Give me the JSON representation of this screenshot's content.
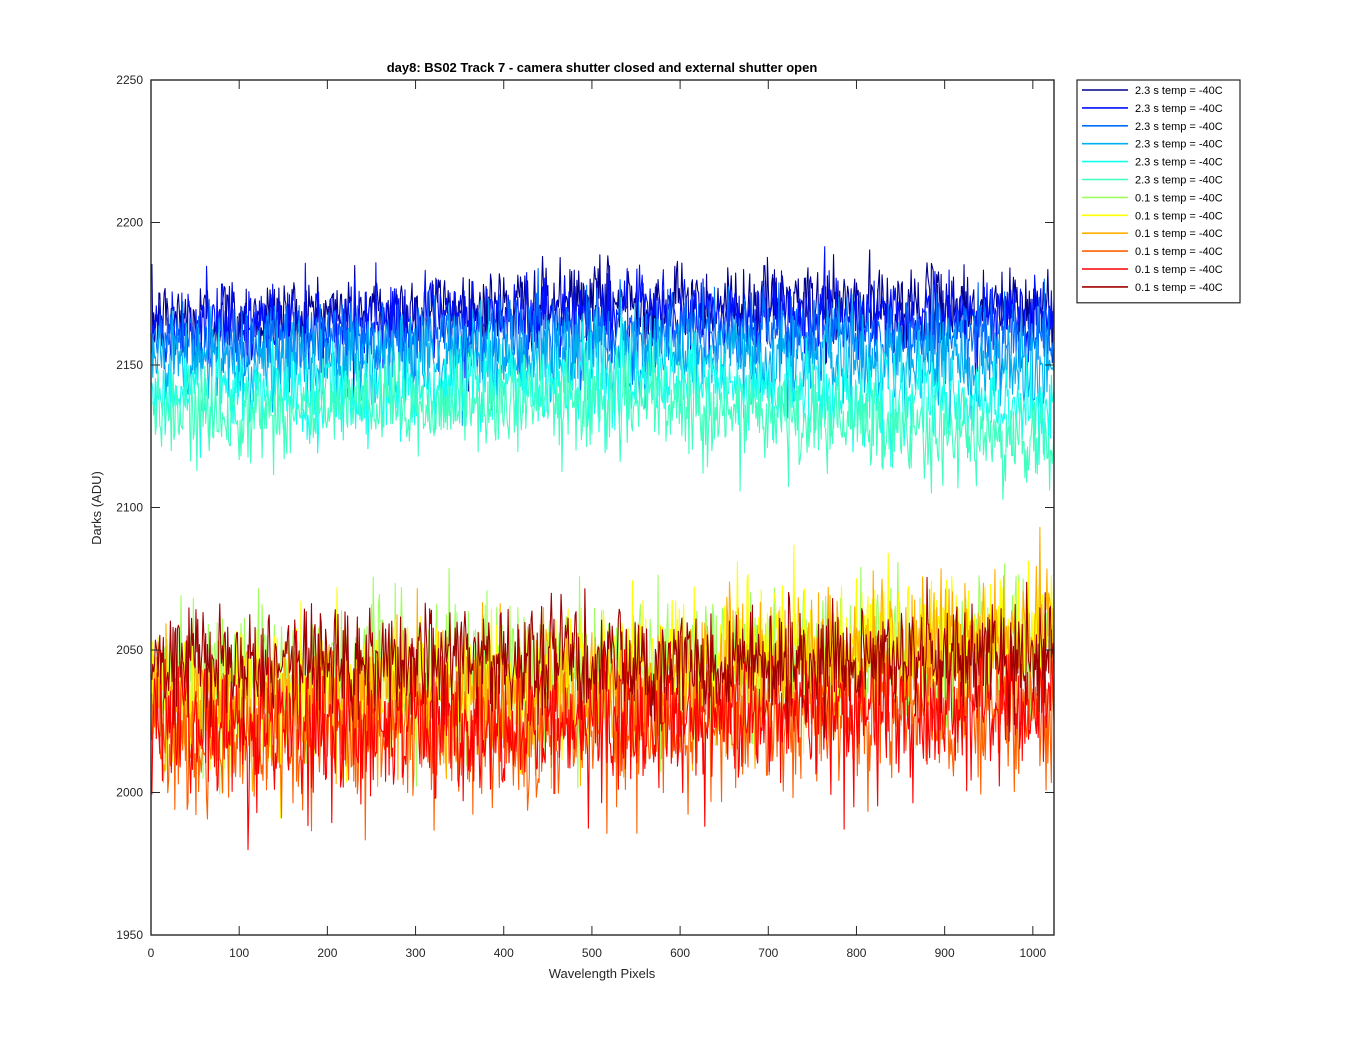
{
  "chart_data": {
    "type": "line",
    "title": "day8: BS02  Track 7 - camera shutter closed and external shutter open",
    "xlabel": "Wavelength Pixels",
    "ylabel": "Darks (ADU)",
    "xlim": [
      0,
      1024
    ],
    "ylim": [
      1950,
      2250
    ],
    "xticks": [
      0,
      100,
      200,
      300,
      400,
      500,
      600,
      700,
      800,
      900,
      1000
    ],
    "yticks": [
      1950,
      2000,
      2050,
      2100,
      2150,
      2200,
      2250
    ],
    "grid": false,
    "legend_position": "outside-top-right",
    "x_count": 1024,
    "series": [
      {
        "name": "2.3 s temp = -40C",
        "color": "#00008f",
        "center_start": 2166,
        "center_mid": 2172,
        "center_end": 2170,
        "spread": 7,
        "peak": 2212,
        "trough": 2140
      },
      {
        "name": "2.3 s temp = -40C",
        "color": "#0010ff",
        "center_start": 2163,
        "center_mid": 2168,
        "center_end": 2167,
        "spread": 7,
        "peak": 2198,
        "trough": 2136
      },
      {
        "name": "2.3 s temp = -40C",
        "color": "#0070ff",
        "center_start": 2158,
        "center_mid": 2162,
        "center_end": 2160,
        "spread": 7,
        "peak": 2190,
        "trough": 2128
      },
      {
        "name": "2.3 s temp = -40C",
        "color": "#00afef",
        "center_start": 2150,
        "center_mid": 2154,
        "center_end": 2150,
        "spread": 8,
        "peak": 2182,
        "trough": 2112
      },
      {
        "name": "2.3 s temp = -40C",
        "color": "#10ffef",
        "center_start": 2138,
        "center_mid": 2145,
        "center_end": 2135,
        "spread": 8,
        "peak": 2175,
        "trough": 2096
      },
      {
        "name": "2.3 s temp = -40C",
        "color": "#40ffbf",
        "center_start": 2132,
        "center_mid": 2138,
        "center_end": 2122,
        "spread": 8,
        "peak": 2165,
        "trough": 2090
      },
      {
        "name": "0.1 s temp = -40C",
        "color": "#a0ff60",
        "center_start": 2040,
        "center_mid": 2044,
        "center_end": 2052,
        "spread": 12,
        "peak": 2086,
        "trough": 1995
      },
      {
        "name": "0.1 s temp = -40C",
        "color": "#ffff00",
        "center_start": 2032,
        "center_mid": 2040,
        "center_end": 2058,
        "spread": 12,
        "peak": 2093,
        "trough": 1985
      },
      {
        "name": "0.1 s temp = -40C",
        "color": "#ffaf00",
        "center_start": 2030,
        "center_mid": 2038,
        "center_end": 2055,
        "spread": 12,
        "peak": 2093,
        "trough": 1980
      },
      {
        "name": "0.1 s temp = -40C",
        "color": "#ff6000",
        "center_start": 2018,
        "center_mid": 2024,
        "center_end": 2030,
        "spread": 12,
        "peak": 2070,
        "trough": 1970
      },
      {
        "name": "0.1 s temp = -40C",
        "color": "#ff0000",
        "center_start": 2022,
        "center_mid": 2024,
        "center_end": 2032,
        "spread": 12,
        "peak": 2070,
        "trough": 1970
      },
      {
        "name": "0.1 s temp = -40C",
        "color": "#a00000",
        "center_start": 2046,
        "center_mid": 2046,
        "center_end": 2048,
        "spread": 10,
        "peak": 2079,
        "trough": 2010
      }
    ]
  }
}
